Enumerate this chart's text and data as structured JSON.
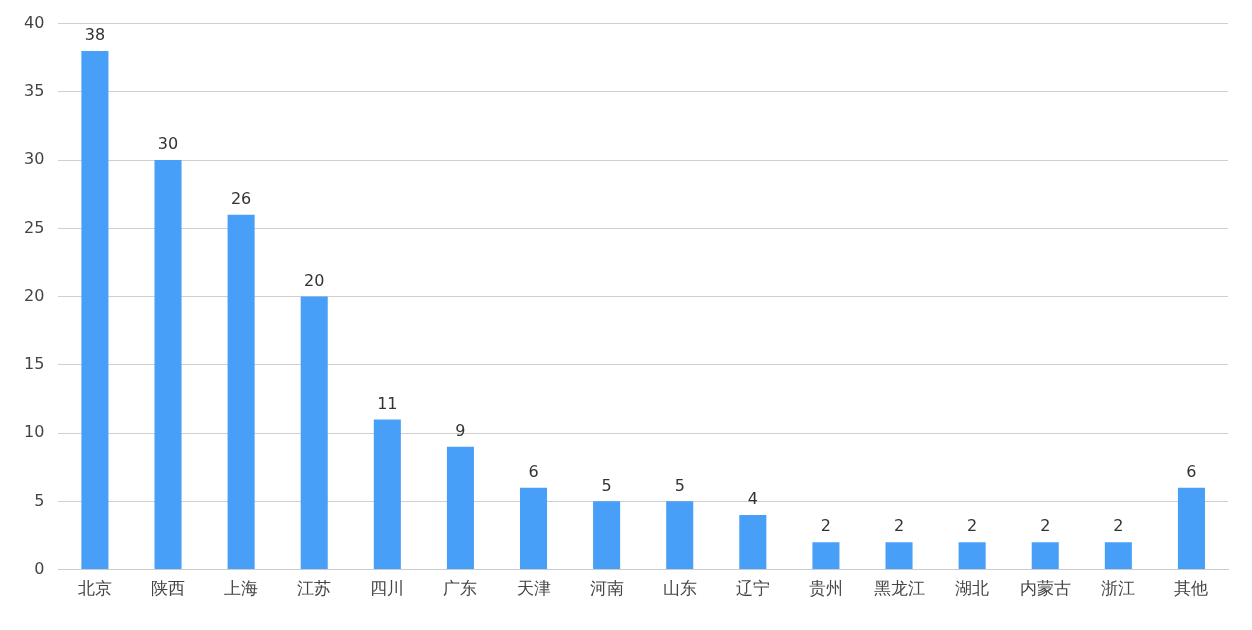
{
  "chart_data": {
    "type": "bar",
    "categories": [
      "北京",
      "陕西",
      "上海",
      "江苏",
      "四川",
      "广东",
      "天津",
      "河南",
      "山东",
      "辽宁",
      "贵州",
      "黑龙江",
      "湖北",
      "内蒙古",
      "浙江",
      "其他"
    ],
    "values": [
      38,
      30,
      26,
      20,
      11,
      9,
      6,
      5,
      5,
      4,
      2,
      2,
      2,
      2,
      2,
      6
    ],
    "color": "#479ff8",
    "ylim": [
      0,
      40
    ],
    "yticks": [
      0,
      5,
      10,
      15,
      20,
      25,
      30,
      35,
      40
    ],
    "grid": "y",
    "data_labels": true,
    "legend": false
  }
}
